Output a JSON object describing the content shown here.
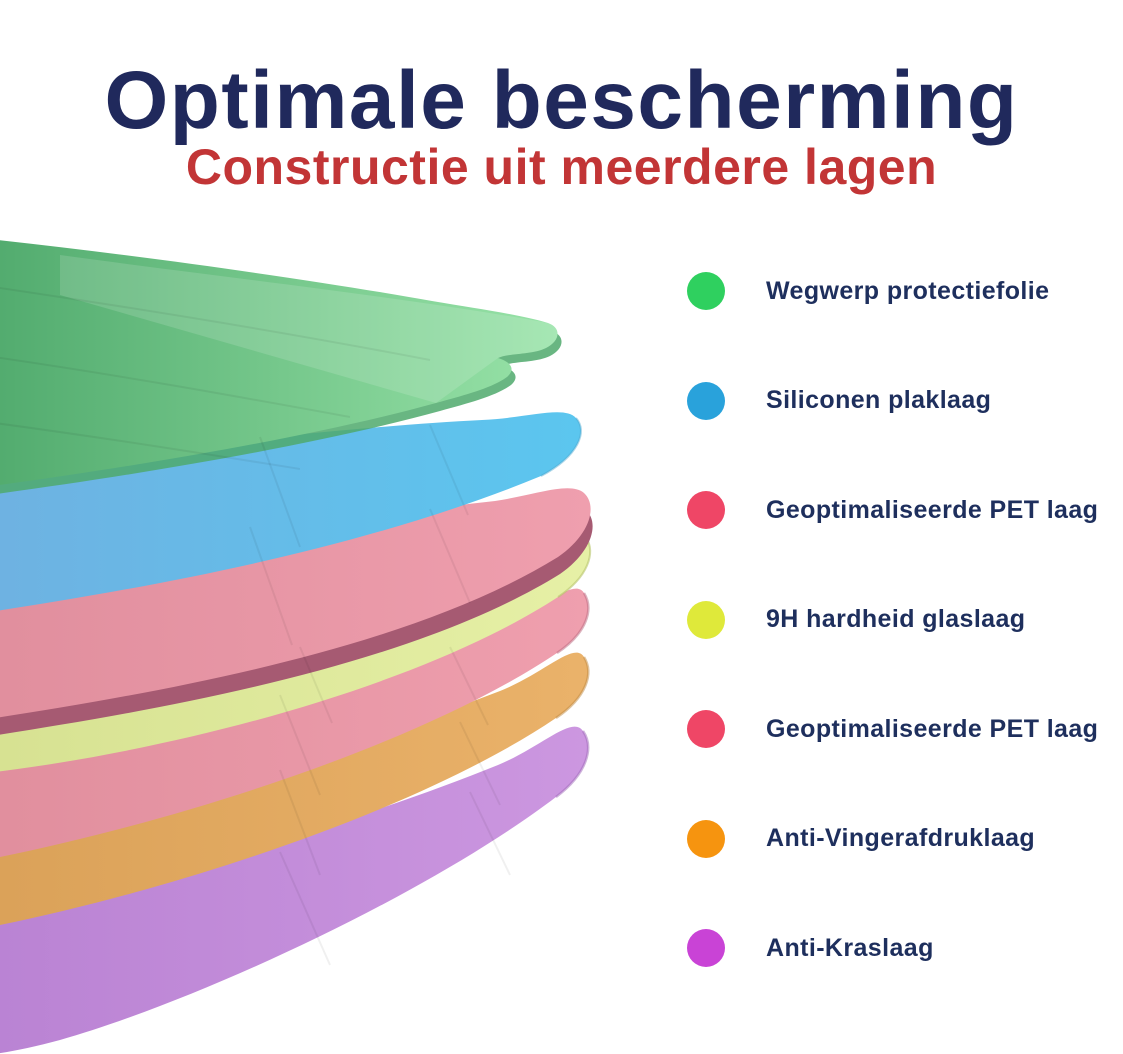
{
  "header": {
    "title": "Optimale bescherming",
    "title_color": "#20295c",
    "subtitle": "Constructie uit meerdere lagen",
    "subtitle_color": "#c23536"
  },
  "legend": {
    "items": [
      {
        "label": "Wegwerp protectiefolie",
        "color": "#2fd05f"
      },
      {
        "label": "Siliconen plaklaag",
        "color": "#29a2db"
      },
      {
        "label": "Geoptimaliseerde PET laag",
        "color": "#ef4666"
      },
      {
        "label": "9H hardheid glaslaag",
        "color": "#dfe93a"
      },
      {
        "label": "Geoptimaliseerde PET laag",
        "color": "#ef4666"
      },
      {
        "label": "Anti-Vingerafdruklaag",
        "color": "#f6940f"
      },
      {
        "label": "Anti-Kraslaag",
        "color": "#c943d6"
      }
    ],
    "label_color": "#1e2f5d"
  },
  "stack": {
    "layers": [
      {
        "name": "Wegwerp protectiefolie",
        "color_left": "#4fa96c",
        "color_right": "#98e3a8"
      },
      {
        "name": "Siliconen plaklaag",
        "color_left": "#6fb1e1",
        "color_right": "#5bc6ef"
      },
      {
        "name": "Geoptimaliseerde PET laag",
        "color_left": "#e08e9d",
        "color_right": "#ef9fae"
      },
      {
        "name": "9H hardheid glaslaag",
        "color_left": "#d6e191",
        "color_right": "#e6f0a6"
      },
      {
        "name": "Geoptimaliseerde PET laag",
        "color_left": "#e08e9d",
        "color_right": "#ef9fae"
      },
      {
        "name": "Anti-Vingerafdruklaag",
        "color_left": "#daa158",
        "color_right": "#eab26a"
      },
      {
        "name": "Anti-Kraslaag",
        "color_left": "#b982d3",
        "color_right": "#cc97e0"
      }
    ],
    "pink_edge": "#a65a72",
    "green_shadow": "#4fa96c"
  }
}
